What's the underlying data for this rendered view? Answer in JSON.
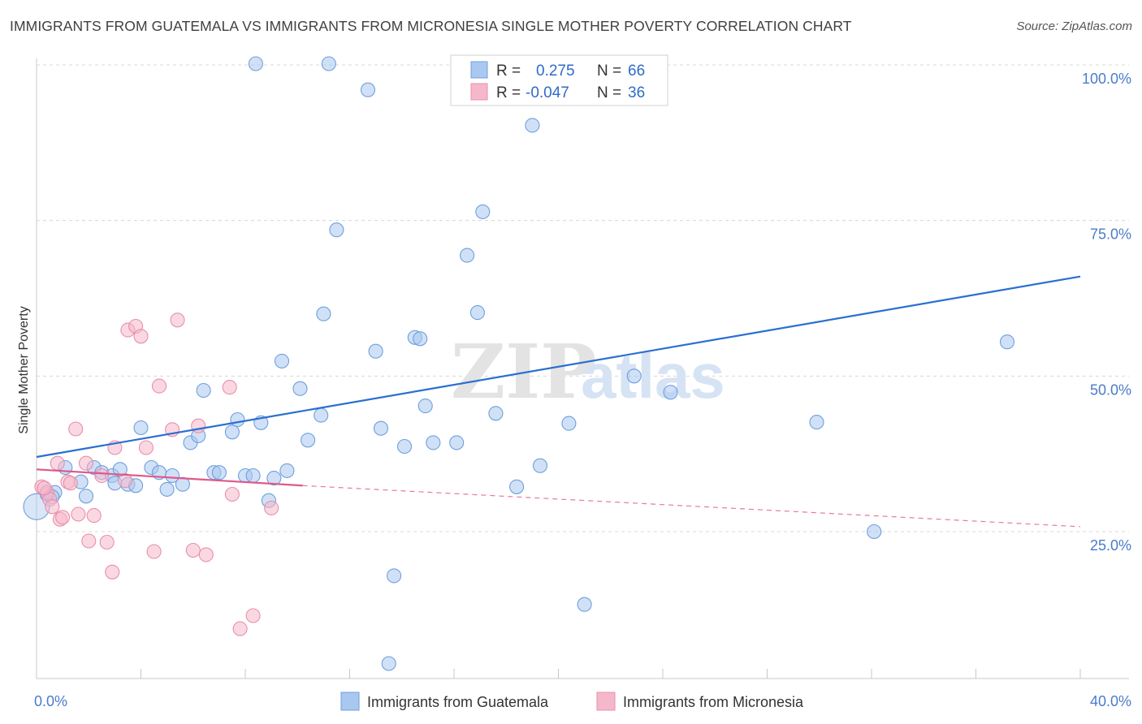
{
  "title": "IMMIGRANTS FROM GUATEMALA VS IMMIGRANTS FROM MICRONESIA SINGLE MOTHER POVERTY CORRELATION CHART",
  "source": "Source: ZipAtlas.com",
  "watermark": {
    "zip": "ZIP",
    "atlas": "atlas"
  },
  "colors": {
    "blue_fill": "#a9c8f0",
    "blue_stroke": "#6f9fdc",
    "blue_line": "#2a6fd1",
    "pink_fill": "#f5b8ca",
    "pink_stroke": "#e98fab",
    "pink_line": "#e0588a",
    "tick_text": "#4a7cc9",
    "grid": "#d8d8d8"
  },
  "legend": {
    "rows": [
      {
        "r_label": "R =",
        "r_value": "0.275",
        "n_label": "N =",
        "n_value": "66"
      },
      {
        "r_label": "R =",
        "r_value": "-0.047",
        "n_label": "N =",
        "n_value": "36"
      }
    ]
  },
  "chart_data": {
    "type": "scatter",
    "title": "IMMIGRANTS FROM GUATEMALA VS IMMIGRANTS FROM MICRONESIA SINGLE MOTHER POVERTY CORRELATION CHART",
    "xlabel": "",
    "ylabel": "Single Mother Poverty",
    "xlim": [
      0,
      40
    ],
    "ylim": [
      0,
      102
    ],
    "x_ticks": [
      "0.0%",
      "40.0%"
    ],
    "y_ticks": [
      {
        "value": 25,
        "label": "25.0%"
      },
      {
        "value": 50,
        "label": "50.0%"
      },
      {
        "value": 75,
        "label": "75.0%"
      },
      {
        "value": 100,
        "label": "100.0%"
      }
    ],
    "grid": true,
    "legend_position": "top-center",
    "series": [
      {
        "name": "Immigrants from Guatemala",
        "color": "#a9c8f0",
        "trend": {
          "x": [
            0,
            40
          ],
          "y": [
            37.0,
            66.0
          ],
          "style": "solid"
        },
        "points": [
          [
            0.0,
            29.0
          ],
          [
            0.4,
            31.0
          ],
          [
            0.7,
            31.3
          ],
          [
            1.1,
            35.3
          ],
          [
            1.7,
            33.0
          ],
          [
            1.9,
            30.7
          ],
          [
            2.2,
            35.3
          ],
          [
            2.5,
            34.5
          ],
          [
            2.9,
            34.0
          ],
          [
            3.0,
            32.8
          ],
          [
            3.2,
            35.0
          ],
          [
            3.5,
            32.6
          ],
          [
            3.8,
            32.4
          ],
          [
            4.0,
            41.7
          ],
          [
            4.4,
            35.3
          ],
          [
            4.7,
            34.5
          ],
          [
            5.0,
            31.8
          ],
          [
            5.2,
            34.0
          ],
          [
            5.6,
            32.6
          ],
          [
            5.9,
            39.3
          ],
          [
            6.2,
            40.4
          ],
          [
            6.4,
            47.7
          ],
          [
            6.8,
            34.5
          ],
          [
            7.0,
            34.5
          ],
          [
            7.5,
            41.0
          ],
          [
            7.7,
            43.0
          ],
          [
            8.0,
            34.0
          ],
          [
            8.3,
            34.0
          ],
          [
            8.6,
            42.5
          ],
          [
            8.9,
            30.0
          ],
          [
            9.1,
            33.6
          ],
          [
            9.4,
            52.4
          ],
          [
            9.6,
            34.8
          ],
          [
            10.1,
            48.0
          ],
          [
            10.4,
            39.7
          ],
          [
            10.9,
            43.7
          ],
          [
            11.0,
            60.0
          ],
          [
            11.5,
            73.5
          ],
          [
            13.0,
            54.0
          ],
          [
            13.2,
            41.6
          ],
          [
            13.7,
            17.9
          ],
          [
            14.1,
            38.7
          ],
          [
            14.5,
            56.2
          ],
          [
            14.7,
            56.0
          ],
          [
            14.9,
            45.2
          ],
          [
            15.2,
            39.3
          ],
          [
            16.1,
            39.3
          ],
          [
            16.5,
            69.4
          ],
          [
            16.9,
            60.2
          ],
          [
            17.1,
            76.4
          ],
          [
            17.6,
            44.0
          ],
          [
            18.4,
            32.2
          ],
          [
            19.3,
            35.6
          ],
          [
            20.4,
            42.4
          ],
          [
            21.0,
            13.3
          ],
          [
            22.9,
            50.0
          ],
          [
            24.3,
            47.4
          ],
          [
            29.9,
            42.6
          ],
          [
            32.1,
            25.0
          ],
          [
            37.2,
            55.5
          ],
          [
            8.4,
            100.2
          ],
          [
            11.2,
            100.2
          ],
          [
            12.7,
            96.0
          ],
          [
            19.0,
            90.3
          ],
          [
            13.5,
            3.8
          ],
          [
            0.6,
            30.6
          ]
        ]
      },
      {
        "name": "Immigrants from Micronesia",
        "color": "#f5b8ca",
        "trend": {
          "x": [
            0,
            10.2
          ],
          "y": [
            35.0,
            32.4
          ],
          "style": "solid",
          "dashed_to": {
            "x": 40,
            "y": 25.8
          }
        },
        "points": [
          [
            0.2,
            32.2
          ],
          [
            0.4,
            31.3
          ],
          [
            0.5,
            30.2
          ],
          [
            0.6,
            29.0
          ],
          [
            0.8,
            36.0
          ],
          [
            0.9,
            27.0
          ],
          [
            1.0,
            27.3
          ],
          [
            1.2,
            33.0
          ],
          [
            1.5,
            41.5
          ],
          [
            1.6,
            27.8
          ],
          [
            1.9,
            36.0
          ],
          [
            2.0,
            23.5
          ],
          [
            2.2,
            27.6
          ],
          [
            2.5,
            34.0
          ],
          [
            2.7,
            23.3
          ],
          [
            2.9,
            18.5
          ],
          [
            3.0,
            38.5
          ],
          [
            3.4,
            33.2
          ],
          [
            3.5,
            57.4
          ],
          [
            3.8,
            58.0
          ],
          [
            4.0,
            56.4
          ],
          [
            4.2,
            38.5
          ],
          [
            4.5,
            21.8
          ],
          [
            4.7,
            48.4
          ],
          [
            5.2,
            41.4
          ],
          [
            5.4,
            59.0
          ],
          [
            6.0,
            22.0
          ],
          [
            6.2,
            42.0
          ],
          [
            6.5,
            21.3
          ],
          [
            7.4,
            48.2
          ],
          [
            7.5,
            31.0
          ],
          [
            7.8,
            9.4
          ],
          [
            8.3,
            11.5
          ],
          [
            9.0,
            28.8
          ],
          [
            0.3,
            32.0
          ],
          [
            1.3,
            32.8
          ]
        ]
      }
    ]
  }
}
